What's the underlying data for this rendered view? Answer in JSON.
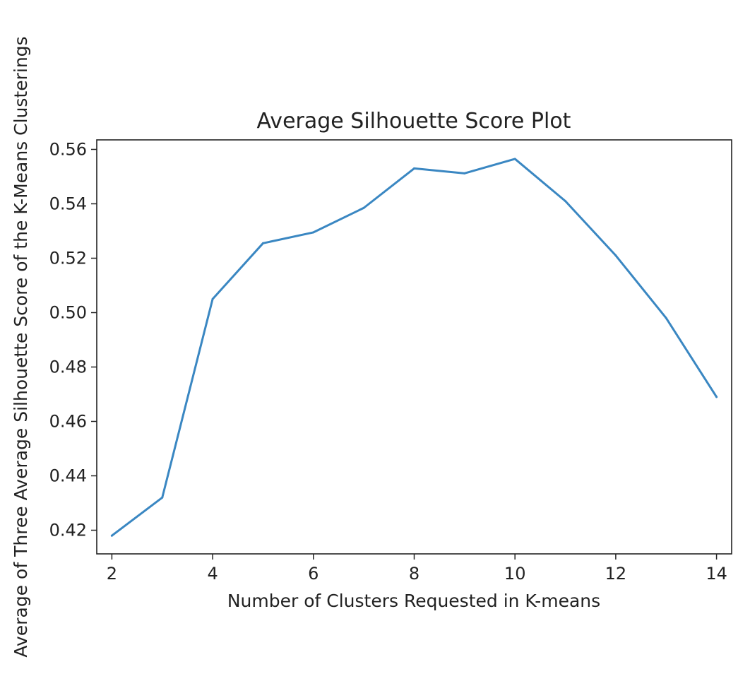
{
  "chart_data": {
    "type": "line",
    "title": "Average Silhouette Score Plot",
    "xlabel": "Number of Clusters Requested in K-means",
    "ylabel": "Average of Three Average Silhouette Score of the K-Means Clusterings",
    "x": [
      2,
      3,
      4,
      5,
      6,
      7,
      8,
      9,
      10,
      11,
      12,
      13,
      14
    ],
    "series": [
      {
        "values": [
          0.418,
          0.432,
          0.505,
          0.5255,
          0.5295,
          0.5385,
          0.553,
          0.5512,
          0.5565,
          0.541,
          0.521,
          0.498,
          0.469
        ]
      }
    ],
    "xlim": [
      1.7,
      14.3
    ],
    "ylim": [
      0.4113,
      0.5635
    ],
    "xticks": [
      2,
      4,
      6,
      8,
      10,
      12,
      14
    ],
    "yticks": [
      0.42,
      0.44,
      0.46,
      0.48,
      0.5,
      0.52,
      0.54,
      0.56
    ],
    "xtick_labels": [
      "2",
      "4",
      "6",
      "8",
      "10",
      "12",
      "14"
    ],
    "ytick_labels": [
      "0.42",
      "0.44",
      "0.46",
      "0.48",
      "0.50",
      "0.52",
      "0.54",
      "0.56"
    ],
    "grid": false,
    "line_color": "#3a87c2"
  }
}
